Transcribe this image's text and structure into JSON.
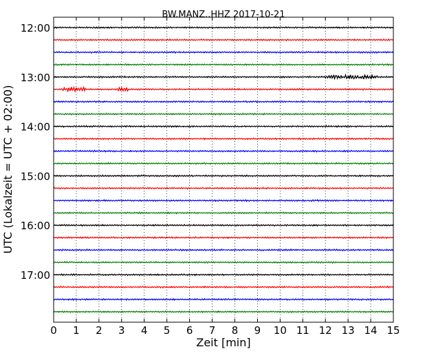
{
  "chart_data": {
    "type": "line",
    "title": "BW.MANZ..HHZ 2017-10-21",
    "xlabel": "Zeit  [min]",
    "ylabel": "UTC (Lokalzeit = UTC + 02:00)",
    "xlim": [
      0,
      15
    ],
    "x_ticks": [
      "0",
      "1",
      "2",
      "3",
      "4",
      "5",
      "6",
      "7",
      "8",
      "9",
      "10",
      "11",
      "12",
      "13",
      "14",
      "15"
    ],
    "y_tick_labels": [
      "12:00",
      "13:00",
      "14:00",
      "15:00",
      "16:00",
      "17:00"
    ],
    "row_interval_minutes": 15,
    "grid": "vertical dotted",
    "trace_colors": [
      "#000000",
      "#ff0000",
      "#0000ff",
      "#008000"
    ],
    "rows": [
      {
        "start": "12:00",
        "color": "#000000"
      },
      {
        "start": "12:15",
        "color": "#ff0000"
      },
      {
        "start": "12:30",
        "color": "#0000ff"
      },
      {
        "start": "12:45",
        "color": "#008000"
      },
      {
        "start": "13:00",
        "color": "#000000"
      },
      {
        "start": "13:15",
        "color": "#ff0000"
      },
      {
        "start": "13:30",
        "color": "#0000ff"
      },
      {
        "start": "13:45",
        "color": "#008000"
      },
      {
        "start": "14:00",
        "color": "#000000"
      },
      {
        "start": "14:15",
        "color": "#ff0000"
      },
      {
        "start": "14:30",
        "color": "#0000ff"
      },
      {
        "start": "14:45",
        "color": "#008000"
      },
      {
        "start": "15:00",
        "color": "#000000"
      },
      {
        "start": "15:15",
        "color": "#ff0000"
      },
      {
        "start": "15:30",
        "color": "#0000ff"
      },
      {
        "start": "15:45",
        "color": "#008000"
      },
      {
        "start": "16:00",
        "color": "#000000"
      },
      {
        "start": "16:15",
        "color": "#ff0000"
      },
      {
        "start": "16:30",
        "color": "#0000ff"
      },
      {
        "start": "16:45",
        "color": "#008000"
      },
      {
        "start": "17:00",
        "color": "#000000"
      },
      {
        "start": "17:15",
        "color": "#ff0000"
      },
      {
        "start": "17:30",
        "color": "#0000ff"
      },
      {
        "start": "17:45",
        "color": "#008000"
      }
    ],
    "events": [
      {
        "row": 4,
        "x_min_start": 12.0,
        "x_min_end": 14.3,
        "note": "elevated amplitude"
      },
      {
        "row": 5,
        "x_min_start": 0.4,
        "x_min_end": 1.4,
        "note": "elevated amplitude"
      },
      {
        "row": 5,
        "x_min_start": 2.8,
        "x_min_end": 3.3,
        "note": "elevated amplitude"
      }
    ]
  }
}
